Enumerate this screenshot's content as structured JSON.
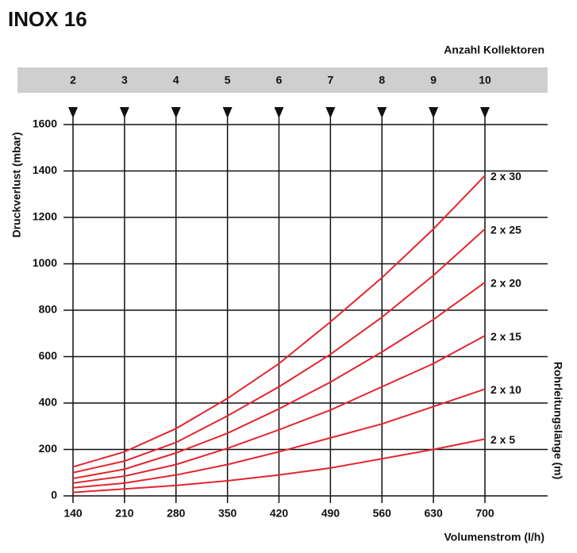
{
  "chart_data": {
    "type": "line",
    "title": "INOX 16",
    "xlabel": "Volumenstrom (l/h)",
    "ylabel": "Druckverlust (mbar)",
    "y2label": "Rohrleitungslänge (m)",
    "x2label": "Anzahl Kollektoren",
    "x": [
      140,
      210,
      280,
      350,
      420,
      490,
      560,
      630,
      700
    ],
    "xlim": [
      140,
      700
    ],
    "xticks": [
      140,
      210,
      280,
      350,
      420,
      490,
      560,
      630,
      700
    ],
    "x2ticks": [
      {
        "value": 140,
        "label": "2"
      },
      {
        "value": 210,
        "label": "3"
      },
      {
        "value": 280,
        "label": "4"
      },
      {
        "value": 350,
        "label": "5"
      },
      {
        "value": 420,
        "label": "6"
      },
      {
        "value": 490,
        "label": "7"
      },
      {
        "value": 560,
        "label": "8"
      },
      {
        "value": 630,
        "label": "9"
      },
      {
        "value": 700,
        "label": "10"
      }
    ],
    "ylim": [
      0,
      1600
    ],
    "yticks": [
      0,
      200,
      400,
      600,
      800,
      1000,
      1200,
      1400,
      1600
    ],
    "grid": true,
    "series": [
      {
        "name": "2 x 30",
        "color": "#e3262e",
        "values": [
          125,
          190,
          290,
          420,
          570,
          750,
          940,
          1150,
          1380
        ]
      },
      {
        "name": "2 x 25",
        "color": "#e3262e",
        "values": [
          100,
          150,
          230,
          345,
          470,
          610,
          770,
          950,
          1150
        ]
      },
      {
        "name": "2 x 20",
        "color": "#e3262e",
        "values": [
          75,
          115,
          185,
          270,
          375,
          490,
          620,
          760,
          920
        ]
      },
      {
        "name": "2 x 15",
        "color": "#e3262e",
        "values": [
          55,
          85,
          135,
          205,
          285,
          370,
          470,
          570,
          690
        ]
      },
      {
        "name": "2 x 10",
        "color": "#e3262e",
        "values": [
          35,
          55,
          90,
          135,
          190,
          250,
          310,
          385,
          460
        ]
      },
      {
        "name": "2 x 5",
        "color": "#e3262e",
        "values": [
          15,
          30,
          45,
          65,
          90,
          120,
          160,
          200,
          245
        ]
      }
    ]
  }
}
